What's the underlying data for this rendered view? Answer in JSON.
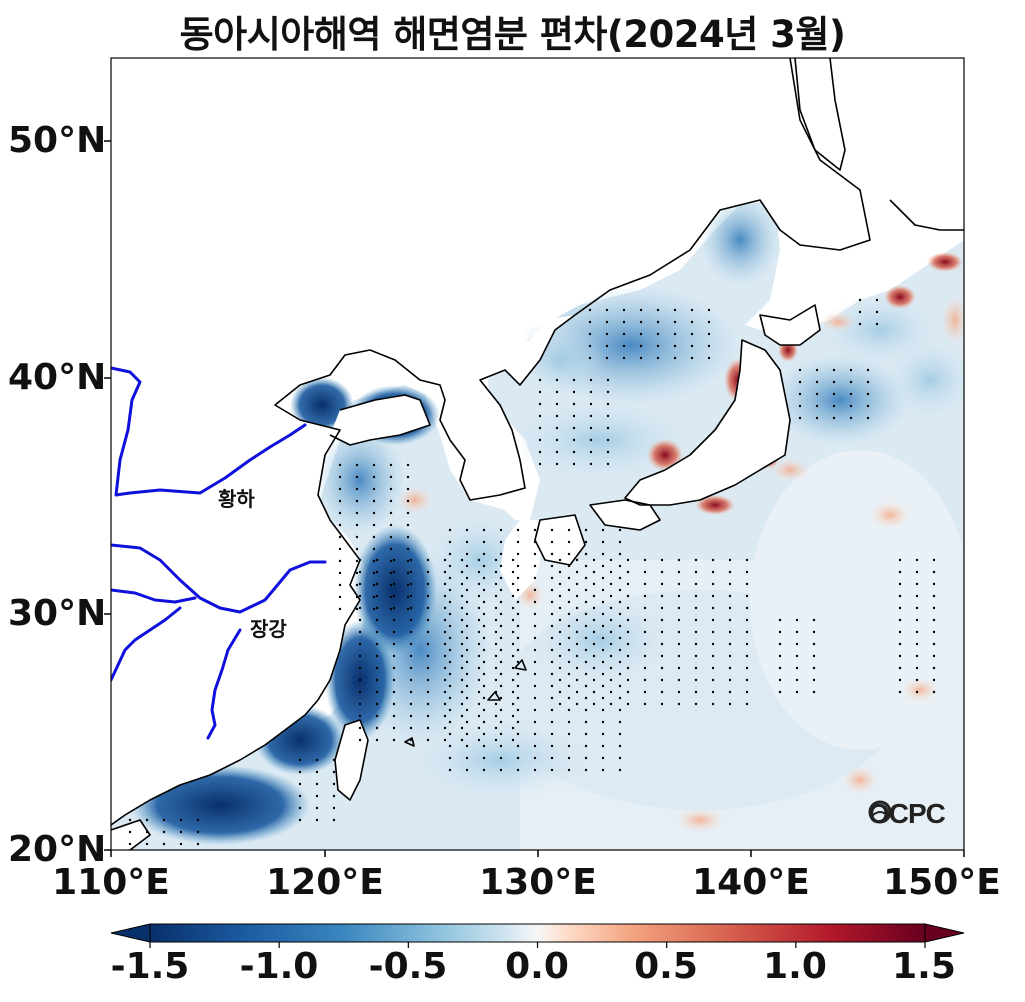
{
  "title": "동아시아해역 해면염분 편차(2024년 3월)",
  "map": {
    "lat_ticks": [
      "50°N",
      "40°N",
      "30°N",
      "20°N"
    ],
    "lon_ticks": [
      "110°E",
      "120°E",
      "130°E",
      "140°E",
      "150°E"
    ],
    "extent": {
      "lon_min": 110,
      "lon_max": 150,
      "lat_min": 20,
      "lat_max": 53.5
    },
    "rivers": [
      {
        "name": "황하",
        "color": "#1010dd"
      },
      {
        "name": "장강",
        "color": "#1010dd"
      }
    ],
    "logo": "OCPC",
    "stipple_note_color": "#000000"
  },
  "colorbar": {
    "tick_labels": [
      "-1.5",
      "-1.0",
      "-0.5",
      "0.0",
      "0.5",
      "1.0",
      "1.5"
    ],
    "min": -1.5,
    "max": 1.5,
    "colormap": "RdBu_r",
    "stops": [
      "#08306b",
      "#2166ac",
      "#4393c3",
      "#92c5de",
      "#d1e5f0",
      "#f7f7f7",
      "#fddbc7",
      "#f4a582",
      "#d6604d",
      "#b2182b",
      "#67001f"
    ]
  }
}
